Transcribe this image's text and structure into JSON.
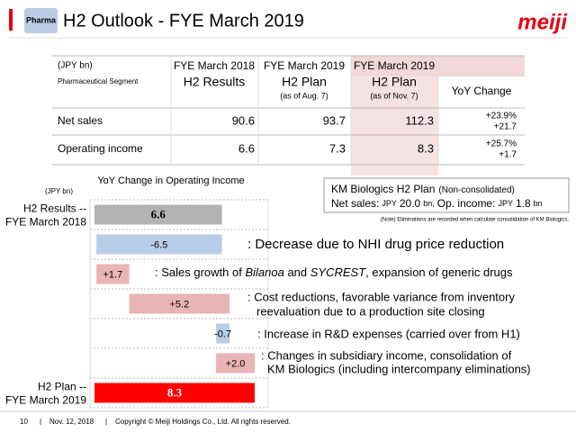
{
  "header": {
    "badge": "Pharma",
    "title": "H2 Outlook - FYE March 2019",
    "logo": "meiji"
  },
  "table": {
    "unit": "(JPY bn)",
    "segment": "Pharmaceutical Segment",
    "columns": [
      {
        "period": "FYE March 2018",
        "plan": "H2 Results"
      },
      {
        "period": "FYE March 2019",
        "plan": "H2 Plan",
        "note": "(as of Aug. 7)"
      },
      {
        "period": "FYE March 2019",
        "plan": "H2 Plan",
        "note": "(as of Nov. 7)"
      },
      {
        "plan": "YoY Change"
      }
    ],
    "rows": [
      {
        "label": "Net sales",
        "values": [
          "90.6",
          "93.7",
          "112.3"
        ],
        "yoy": [
          "+23.9%",
          "+21.7"
        ]
      },
      {
        "label": "Operating income",
        "values": [
          "6.6",
          "7.3",
          "8.3"
        ],
        "yoy": [
          "+25.7%",
          "+1.7"
        ]
      }
    ]
  },
  "km_box": {
    "title": "KM Biologics H2 Plan",
    "subtitle": "(Non-consolidated)",
    "line": [
      "Net sales:",
      "JPY",
      "20.0",
      "bn,",
      "Op. income:",
      "JPY",
      "1.8",
      "bn"
    ]
  },
  "note": "(Note) Eliminations are recorded when calculate consolidation of KM Biologics.",
  "chart_data": {
    "type": "waterfall",
    "title": "YoY Change in Operating Income",
    "unit": "(JPY bn)",
    "categories": [
      [
        "H2 Results --",
        "FYE March 2018"
      ],
      null,
      null,
      null,
      null,
      null,
      [
        "H2 Plan --",
        "FYE March 2019"
      ]
    ],
    "values": [
      6.6,
      -6.5,
      1.7,
      5.2,
      -0.7,
      2.0,
      8.3
    ],
    "value_labels": [
      "6.6",
      "-6.5",
      "+1.7",
      "+5.2",
      "-0.7",
      "+2.0",
      "8.3"
    ],
    "colors": [
      "#b3b3b3",
      "#b8cde8",
      "#e8b4b4",
      "#e8b4b4",
      "#b8cde8",
      "#e8b4b4",
      "#ff0000"
    ],
    "xlim": [
      0,
      9
    ],
    "annotations": [
      [
        ": Decrease due to NHI drug price reduction"
      ],
      [
        ": Sales growth of ",
        "Bilanoa",
        " and ",
        "SYCREST",
        ", expansion of generic drugs"
      ],
      [
        ": Cost reductions, favorable variance from inventory",
        "reevaluation due to a production site closing"
      ],
      [
        ": Increase in R&D expenses (carried over from H1)"
      ],
      [
        ": Changes in subsidiary income, consolidation of",
        "KM Biologics (including intercompany eliminations)"
      ]
    ]
  },
  "footer": {
    "page": "10",
    "date": "Nov. 12, 2018",
    "copyright": "Copyright © Meiji Holdings Co., Ltd. All rights reserved."
  }
}
